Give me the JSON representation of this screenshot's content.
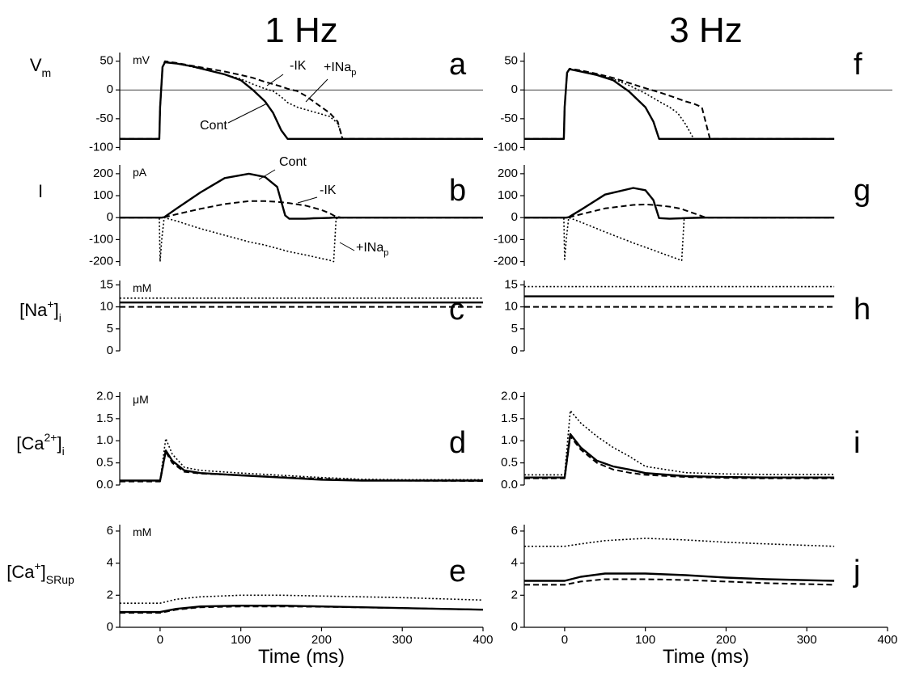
{
  "chart_data": [
    {
      "type": "line",
      "title": "1 Hz",
      "letter": "a",
      "unit": "mV",
      "ylabel": [
        "V",
        "m"
      ],
      "zero_line": true,
      "xlim": [
        -50,
        400
      ],
      "ylim": [
        -105,
        65
      ],
      "yticks": [
        50,
        0,
        -50,
        -100
      ],
      "x": [
        -50,
        -1,
        0,
        3,
        6,
        20,
        40,
        60,
        80,
        100,
        115,
        130,
        140,
        150,
        158,
        170,
        180,
        190,
        200,
        210,
        220,
        226,
        240,
        300,
        400
      ],
      "series": [
        {
          "name": "Cont",
          "color": "#000000",
          "style": "solid",
          "values": [
            -85,
            -85,
            -30,
            40,
            48,
            46,
            41,
            34,
            27,
            17,
            0,
            -20,
            -40,
            -70,
            -85,
            -85,
            -85,
            -85,
            -85,
            -85,
            -85,
            -85,
            -85,
            -85,
            -85
          ]
        },
        {
          "name": "-IK",
          "color": "#000000",
          "style": "dashed",
          "values": [
            -85,
            -85,
            -30,
            40,
            50,
            47,
            42,
            37,
            32,
            26,
            21,
            14,
            10,
            6,
            2,
            -2,
            -10,
            -20,
            -30,
            -40,
            -55,
            -85,
            -85,
            -85,
            -85
          ]
        },
        {
          "name": "+INap",
          "color": "#000000",
          "style": "dotted",
          "values": [
            -85,
            -85,
            -30,
            40,
            49,
            46,
            40,
            34,
            27,
            19,
            10,
            2,
            -2,
            -12,
            -22,
            -30,
            -34,
            -38,
            -42,
            -46,
            -58,
            -85,
            -85,
            -85,
            -85
          ]
        }
      ]
    },
    {
      "type": "line",
      "letter": "b",
      "unit": "pA",
      "ylabel": [
        "I"
      ],
      "xlim": [
        -50,
        400
      ],
      "ylim": [
        -220,
        240
      ],
      "yticks": [
        200,
        100,
        0,
        -100,
        -200
      ],
      "x": [
        -50,
        -1,
        0,
        2,
        5,
        20,
        50,
        80,
        110,
        130,
        145,
        155,
        160,
        180,
        190,
        200,
        210,
        215,
        218,
        225,
        250,
        300,
        400
      ],
      "series": [
        {
          "name": "Cont",
          "color": "#000000",
          "style": "solid",
          "values": [
            0,
            0,
            0,
            0,
            2,
            40,
            115,
            180,
            200,
            185,
            140,
            10,
            -5,
            -5,
            -3,
            -2,
            -1,
            0,
            0,
            0,
            0,
            0,
            0
          ]
        },
        {
          "name": "-IK",
          "color": "#000000",
          "style": "dashed",
          "values": [
            0,
            0,
            0,
            0,
            1,
            15,
            40,
            62,
            75,
            75,
            72,
            68,
            66,
            55,
            45,
            35,
            20,
            10,
            5,
            0,
            0,
            0,
            0
          ]
        },
        {
          "name": "+INap",
          "color": "#000000",
          "style": "dotted",
          "values": [
            0,
            0,
            -200,
            -100,
            0,
            -15,
            -50,
            -80,
            -110,
            -125,
            -140,
            -150,
            -155,
            -170,
            -178,
            -186,
            -194,
            -200,
            -5,
            0,
            0,
            0,
            0
          ]
        }
      ]
    },
    {
      "type": "line",
      "letter": "c",
      "unit": "mM",
      "ylabel": [
        "[Na",
        "+",
        "]",
        "i"
      ],
      "xlim": [
        -50,
        400
      ],
      "ylim": [
        0,
        16
      ],
      "yticks": [
        15,
        10,
        5,
        0
      ],
      "x": [
        -50,
        400
      ],
      "series": [
        {
          "color": "#000000",
          "style": "solid",
          "values": [
            11,
            11
          ]
        },
        {
          "color": "#000000",
          "style": "dashed",
          "values": [
            10,
            10
          ]
        },
        {
          "color": "#000000",
          "style": "dotted",
          "values": [
            12,
            12
          ]
        }
      ]
    },
    {
      "type": "line",
      "letter": "d",
      "unit": "μM",
      "ylabel": [
        "[Ca",
        "2+",
        "]",
        "i"
      ],
      "xlim": [
        -50,
        400
      ],
      "ylim": [
        0,
        2.1
      ],
      "yticks": [
        {
          "value": 2,
          "label": "2.0"
        },
        {
          "value": 1.5,
          "label": "1.5"
        },
        {
          "value": 1,
          "label": "1.0"
        },
        {
          "value": 0.5,
          "label": "0.5"
        },
        {
          "value": 0,
          "label": "0.0"
        }
      ],
      "x": [
        -50,
        -1,
        0,
        7,
        15,
        30,
        50,
        100,
        150,
        200,
        250,
        300,
        400
      ],
      "series": [
        {
          "color": "#000000",
          "style": "solid",
          "values": [
            0.1,
            0.1,
            0.1,
            0.78,
            0.55,
            0.33,
            0.27,
            0.22,
            0.17,
            0.12,
            0.1,
            0.1,
            0.1
          ]
        },
        {
          "color": "#000000",
          "style": "dashed",
          "values": [
            0.08,
            0.08,
            0.08,
            0.75,
            0.5,
            0.3,
            0.26,
            0.22,
            0.18,
            0.14,
            0.11,
            0.1,
            0.09
          ]
        },
        {
          "color": "#000000",
          "style": "dotted",
          "values": [
            0.1,
            0.1,
            0.1,
            1.05,
            0.7,
            0.4,
            0.33,
            0.27,
            0.22,
            0.17,
            0.13,
            0.12,
            0.12
          ]
        }
      ]
    },
    {
      "type": "line",
      "letter": "e",
      "unit": "mM",
      "ylabel": [
        "[Ca",
        "+",
        "]",
        "SRup"
      ],
      "xlabel": "Time (ms)",
      "xlim": [
        -50,
        400
      ],
      "xticks": [
        0,
        100,
        200,
        300,
        400
      ],
      "ylim": [
        0,
        6.4
      ],
      "yticks": [
        6,
        4,
        2,
        0
      ],
      "x": [
        -50,
        0,
        20,
        50,
        100,
        150,
        200,
        300,
        400
      ],
      "series": [
        {
          "color": "#000000",
          "style": "solid",
          "values": [
            0.95,
            0.95,
            1.15,
            1.3,
            1.35,
            1.35,
            1.3,
            1.2,
            1.1
          ]
        },
        {
          "color": "#000000",
          "style": "dashed",
          "values": [
            0.9,
            0.9,
            1.1,
            1.25,
            1.3,
            1.3,
            1.28,
            1.2,
            1.1
          ]
        },
        {
          "color": "#000000",
          "style": "dotted",
          "values": [
            1.5,
            1.5,
            1.75,
            1.9,
            2.0,
            2.0,
            1.95,
            1.85,
            1.7
          ]
        }
      ]
    },
    {
      "type": "line",
      "title": "3 Hz",
      "letter": "f",
      "zero_line": true,
      "xlim": [
        -50,
        400
      ],
      "ylim": [
        -105,
        65
      ],
      "yticks": [
        50,
        0,
        -50,
        -100
      ],
      "x": [
        -50,
        -1,
        0,
        3,
        6,
        20,
        40,
        60,
        80,
        100,
        110,
        117,
        130,
        140,
        150,
        160,
        170,
        180,
        200,
        250,
        334
      ],
      "series": [
        {
          "color": "#000000",
          "style": "solid",
          "values": [
            -85,
            -85,
            -30,
            30,
            36,
            32,
            26,
            17,
            -3,
            -30,
            -55,
            -85,
            -85,
            -85,
            -85,
            -85,
            -85,
            -85,
            -85,
            -85,
            -85
          ]
        },
        {
          "color": "#000000",
          "style": "dashed",
          "values": [
            -85,
            -85,
            -30,
            30,
            37,
            34,
            28,
            21,
            12,
            3,
            -1,
            -4,
            -10,
            -15,
            -20,
            -24,
            -30,
            -85,
            -85,
            -85,
            -85
          ]
        },
        {
          "color": "#000000",
          "style": "dotted",
          "values": [
            -85,
            -85,
            -30,
            30,
            36,
            33,
            27,
            19,
            8,
            -6,
            -14,
            -20,
            -30,
            -40,
            -60,
            -85,
            -85,
            -85,
            -85,
            -85,
            -85
          ]
        }
      ]
    },
    {
      "type": "line",
      "letter": "g",
      "xlim": [
        -50,
        400
      ],
      "ylim": [
        -220,
        240
      ],
      "yticks": [
        200,
        100,
        0,
        -100,
        -200
      ],
      "x": [
        -50,
        -1,
        0,
        2,
        5,
        20,
        50,
        85,
        100,
        110,
        117,
        130,
        145,
        148,
        160,
        175,
        200,
        250,
        334
      ],
      "series": [
        {
          "color": "#000000",
          "style": "solid",
          "values": [
            0,
            0,
            0,
            0,
            2,
            35,
            105,
            135,
            125,
            80,
            -2,
            -5,
            -3,
            -2,
            -1,
            0,
            0,
            0,
            0
          ]
        },
        {
          "color": "#000000",
          "style": "dashed",
          "values": [
            0,
            0,
            0,
            0,
            1,
            15,
            42,
            58,
            60,
            58,
            55,
            50,
            40,
            35,
            20,
            0,
            0,
            0,
            0
          ]
        },
        {
          "color": "#000000",
          "style": "dotted",
          "values": [
            0,
            0,
            -190,
            -100,
            0,
            -20,
            -65,
            -115,
            -135,
            -148,
            -158,
            -175,
            -195,
            -5,
            0,
            0,
            0,
            0,
            0
          ]
        }
      ]
    },
    {
      "type": "line",
      "letter": "h",
      "xlim": [
        -50,
        400
      ],
      "ylim": [
        0,
        16
      ],
      "yticks": [
        15,
        10,
        5,
        0
      ],
      "x": [
        -50,
        334
      ],
      "series": [
        {
          "color": "#000000",
          "style": "solid",
          "values": [
            12.4,
            12.4
          ]
        },
        {
          "color": "#000000",
          "style": "dashed",
          "values": [
            10,
            10
          ]
        },
        {
          "color": "#000000",
          "style": "dotted",
          "values": [
            14.6,
            14.6
          ]
        }
      ]
    },
    {
      "type": "line",
      "letter": "i",
      "xlim": [
        -50,
        400
      ],
      "ylim": [
        0,
        2.1
      ],
      "yticks": [
        {
          "value": 2,
          "label": "2.0"
        },
        {
          "value": 1.5,
          "label": "1.5"
        },
        {
          "value": 1,
          "label": "1.0"
        },
        {
          "value": 0.5,
          "label": "0.5"
        },
        {
          "value": 0,
          "label": "0.0"
        }
      ],
      "x": [
        -50,
        -1,
        0,
        7,
        20,
        40,
        60,
        80,
        100,
        150,
        200,
        250,
        334
      ],
      "series": [
        {
          "color": "#000000",
          "style": "solid",
          "values": [
            0.17,
            0.17,
            0.17,
            1.15,
            0.85,
            0.55,
            0.42,
            0.35,
            0.27,
            0.2,
            0.18,
            0.17,
            0.17
          ]
        },
        {
          "color": "#000000",
          "style": "dashed",
          "values": [
            0.15,
            0.15,
            0.15,
            1.1,
            0.8,
            0.5,
            0.35,
            0.28,
            0.23,
            0.18,
            0.16,
            0.15,
            0.15
          ]
        },
        {
          "color": "#000000",
          "style": "dotted",
          "values": [
            0.23,
            0.23,
            0.23,
            1.68,
            1.4,
            1.1,
            0.85,
            0.65,
            0.42,
            0.28,
            0.25,
            0.24,
            0.24
          ]
        }
      ]
    },
    {
      "type": "line",
      "letter": "j",
      "xlabel": "Time (ms)",
      "xlim": [
        -50,
        400
      ],
      "xticks": [
        0,
        100,
        200,
        300,
        400
      ],
      "ylim": [
        0,
        6.4
      ],
      "yticks": [
        6,
        4,
        2,
        0
      ],
      "x": [
        -50,
        0,
        20,
        50,
        100,
        150,
        200,
        250,
        334
      ],
      "series": [
        {
          "color": "#000000",
          "style": "solid",
          "values": [
            2.9,
            2.9,
            3.15,
            3.35,
            3.35,
            3.25,
            3.1,
            3.0,
            2.9
          ]
        },
        {
          "color": "#000000",
          "style": "dashed",
          "values": [
            2.65,
            2.65,
            2.85,
            3.0,
            3.0,
            2.95,
            2.85,
            2.75,
            2.65
          ]
        },
        {
          "color": "#000000",
          "style": "dotted",
          "values": [
            5.05,
            5.05,
            5.2,
            5.4,
            5.55,
            5.45,
            5.3,
            5.2,
            5.05
          ]
        }
      ]
    }
  ]
}
